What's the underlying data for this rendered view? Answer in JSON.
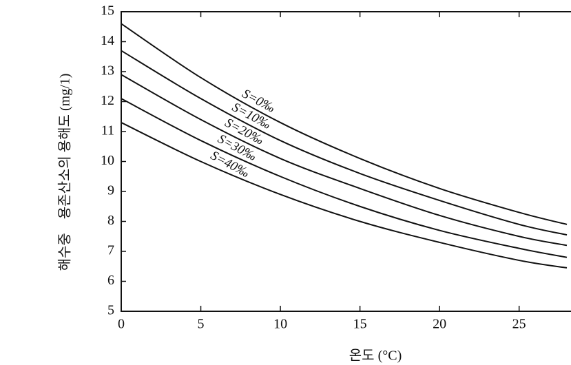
{
  "chart_data": {
    "type": "line",
    "x_label": "온도 (°C)",
    "y_label": "해수중　용존산소의 용해도 (mg/1)",
    "x": [
      0,
      5,
      10,
      15,
      20,
      25,
      28
    ],
    "series": [
      {
        "name": "S=0‰",
        "color": "#111111",
        "values": [
          14.6,
          12.8,
          11.3,
          10.1,
          9.1,
          8.3,
          7.9
        ]
      },
      {
        "name": "S=10‰",
        "color": "#111111",
        "values": [
          13.7,
          12.1,
          10.7,
          9.6,
          8.7,
          7.9,
          7.55
        ]
      },
      {
        "name": "S=20‰",
        "color": "#111111",
        "values": [
          12.9,
          11.4,
          10.1,
          9.1,
          8.2,
          7.5,
          7.2
        ]
      },
      {
        "name": "S=30‰",
        "color": "#111111",
        "values": [
          12.1,
          10.7,
          9.5,
          8.5,
          7.7,
          7.1,
          6.8
        ]
      },
      {
        "name": "S=40‰",
        "color": "#111111",
        "values": [
          11.3,
          10.0,
          8.9,
          8.0,
          7.3,
          6.7,
          6.45
        ]
      }
    ],
    "xlim": [
      0,
      28
    ],
    "xticks": [
      0,
      5,
      10,
      15,
      20,
      25
    ],
    "ylim": [
      5,
      15
    ],
    "yticks": [
      5,
      6,
      7,
      8,
      9,
      10,
      11,
      12,
      13,
      14,
      15
    ]
  }
}
